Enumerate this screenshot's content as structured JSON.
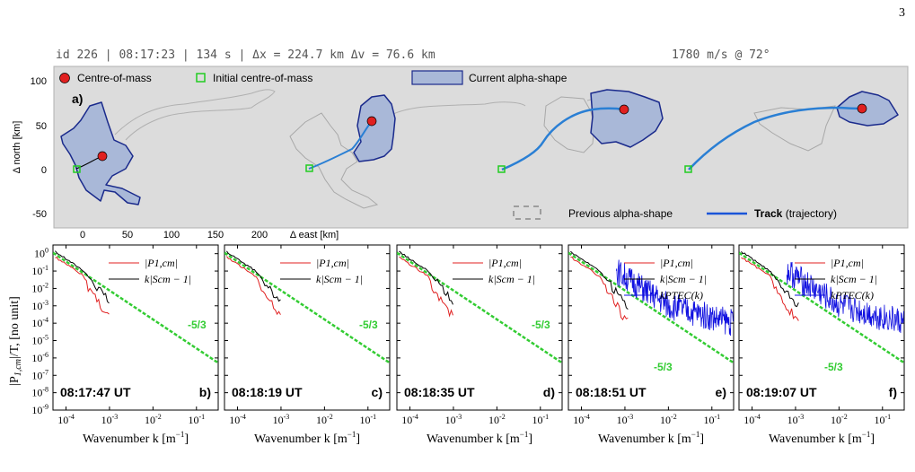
{
  "page_number": "3",
  "header": {
    "left": "id 226 | 08:17:23 | 134 s | Δx = 224.7 km  Δv = 76.6 km",
    "right": "1780 m/s @ 72°"
  },
  "top_panel": {
    "label": "a)",
    "xlabel": "Δ east [km]",
    "ylabel": "Δ north [km]",
    "xticks": [
      "0",
      "50",
      "100",
      "150",
      "200"
    ],
    "yticks": [
      "100",
      "50",
      "0",
      "-50"
    ],
    "xlim": [
      -25,
      215
    ],
    "ylim": [
      -55,
      110
    ],
    "legend": {
      "com": "Centre-of-mass",
      "initial": "Initial centre-of-mass",
      "current": "Current alpha-shape",
      "previous": "Previous alpha-shape",
      "track_bold": "Track",
      "track_rest": " (trajectory)"
    },
    "colors": {
      "background": "#dcdcdc",
      "shape_fill": "#a9b8d8",
      "shape_edge": "#1a2a8c",
      "track": "#2a7fd4",
      "com": "#e02020",
      "initial": "#22cc22",
      "previous": "#9a9a9a"
    }
  },
  "spectra": {
    "ylabel_main": "|P",
    "ylabel_sub": "1,cm",
    "ylabel_rest": "|/T, [no unit]",
    "xlabel_main": "Wavenumber k [m",
    "xlabel_sup": "−1",
    "xlabel_end": "]",
    "yticks": [
      {
        "m": "10",
        "e": "0"
      },
      {
        "m": "10",
        "e": "-1"
      },
      {
        "m": "10",
        "e": "-2"
      },
      {
        "m": "10",
        "e": "-3"
      },
      {
        "m": "10",
        "e": "-4"
      },
      {
        "m": "10",
        "e": "-5"
      },
      {
        "m": "10",
        "e": "-6"
      },
      {
        "m": "10",
        "e": "-7"
      },
      {
        "m": "10",
        "e": "-8"
      },
      {
        "m": "10",
        "e": "-9"
      }
    ],
    "xticks": [
      {
        "m": "10",
        "e": "-4"
      },
      {
        "m": "10",
        "e": "-3"
      },
      {
        "m": "10",
        "e": "-2"
      },
      {
        "m": "10",
        "e": "-1"
      }
    ],
    "slope_label": "-5/3",
    "legend": {
      "red": "|P1,cm|",
      "black": "k|Scm − 1|",
      "blue": "kPTEC(k)"
    },
    "colors": {
      "red": "#e02020",
      "black": "#000000",
      "blue": "#1010e0",
      "slope": "#33cc33"
    },
    "panels": [
      {
        "label": "b)",
        "time": "08:17:47 UT",
        "blue": false
      },
      {
        "label": "c)",
        "time": "08:18:19 UT",
        "blue": false
      },
      {
        "label": "d)",
        "time": "08:18:35 UT",
        "blue": false
      },
      {
        "label": "e)",
        "time": "08:18:51 UT",
        "blue": true
      },
      {
        "label": "f)",
        "time": "08:19:07 UT",
        "blue": true
      }
    ]
  }
}
